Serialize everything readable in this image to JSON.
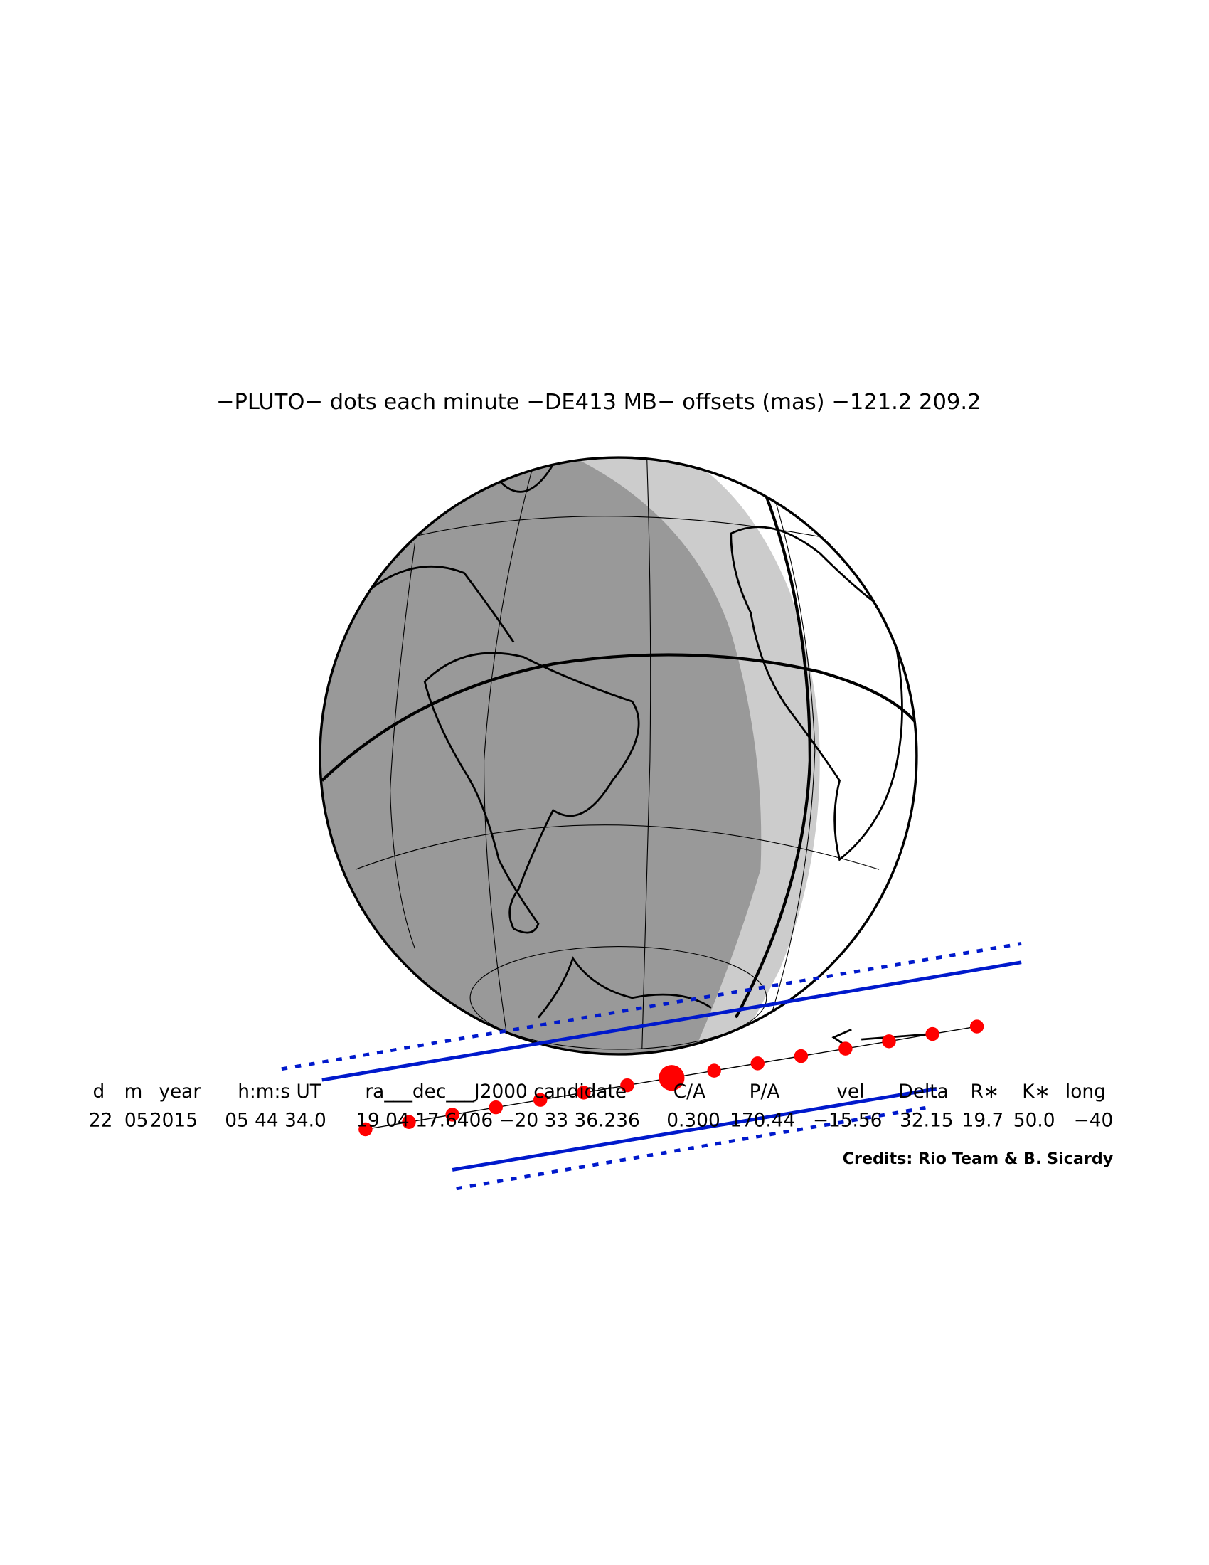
{
  "title": "−PLUTO− dots each minute −DE413 MB− offsets (mas) −121.2  209.2",
  "table": {
    "header": [
      "d",
      "m",
      "year",
      "h:m:s UT",
      "ra___dec___J2000 candidate",
      "C/A",
      "P/A",
      "vel",
      "Delta",
      "R∗",
      "K∗",
      "long"
    ],
    "row": [
      "22",
      "05",
      "2015",
      "05 44 34.0",
      "19 04 17.6406 −20 33 36.236",
      "0.300",
      "170.44",
      "−15.56",
      "32.15",
      "19.7",
      "50.0",
      "−40"
    ]
  },
  "credits": "Credits: Rio Team & B. Sicardy"
}
